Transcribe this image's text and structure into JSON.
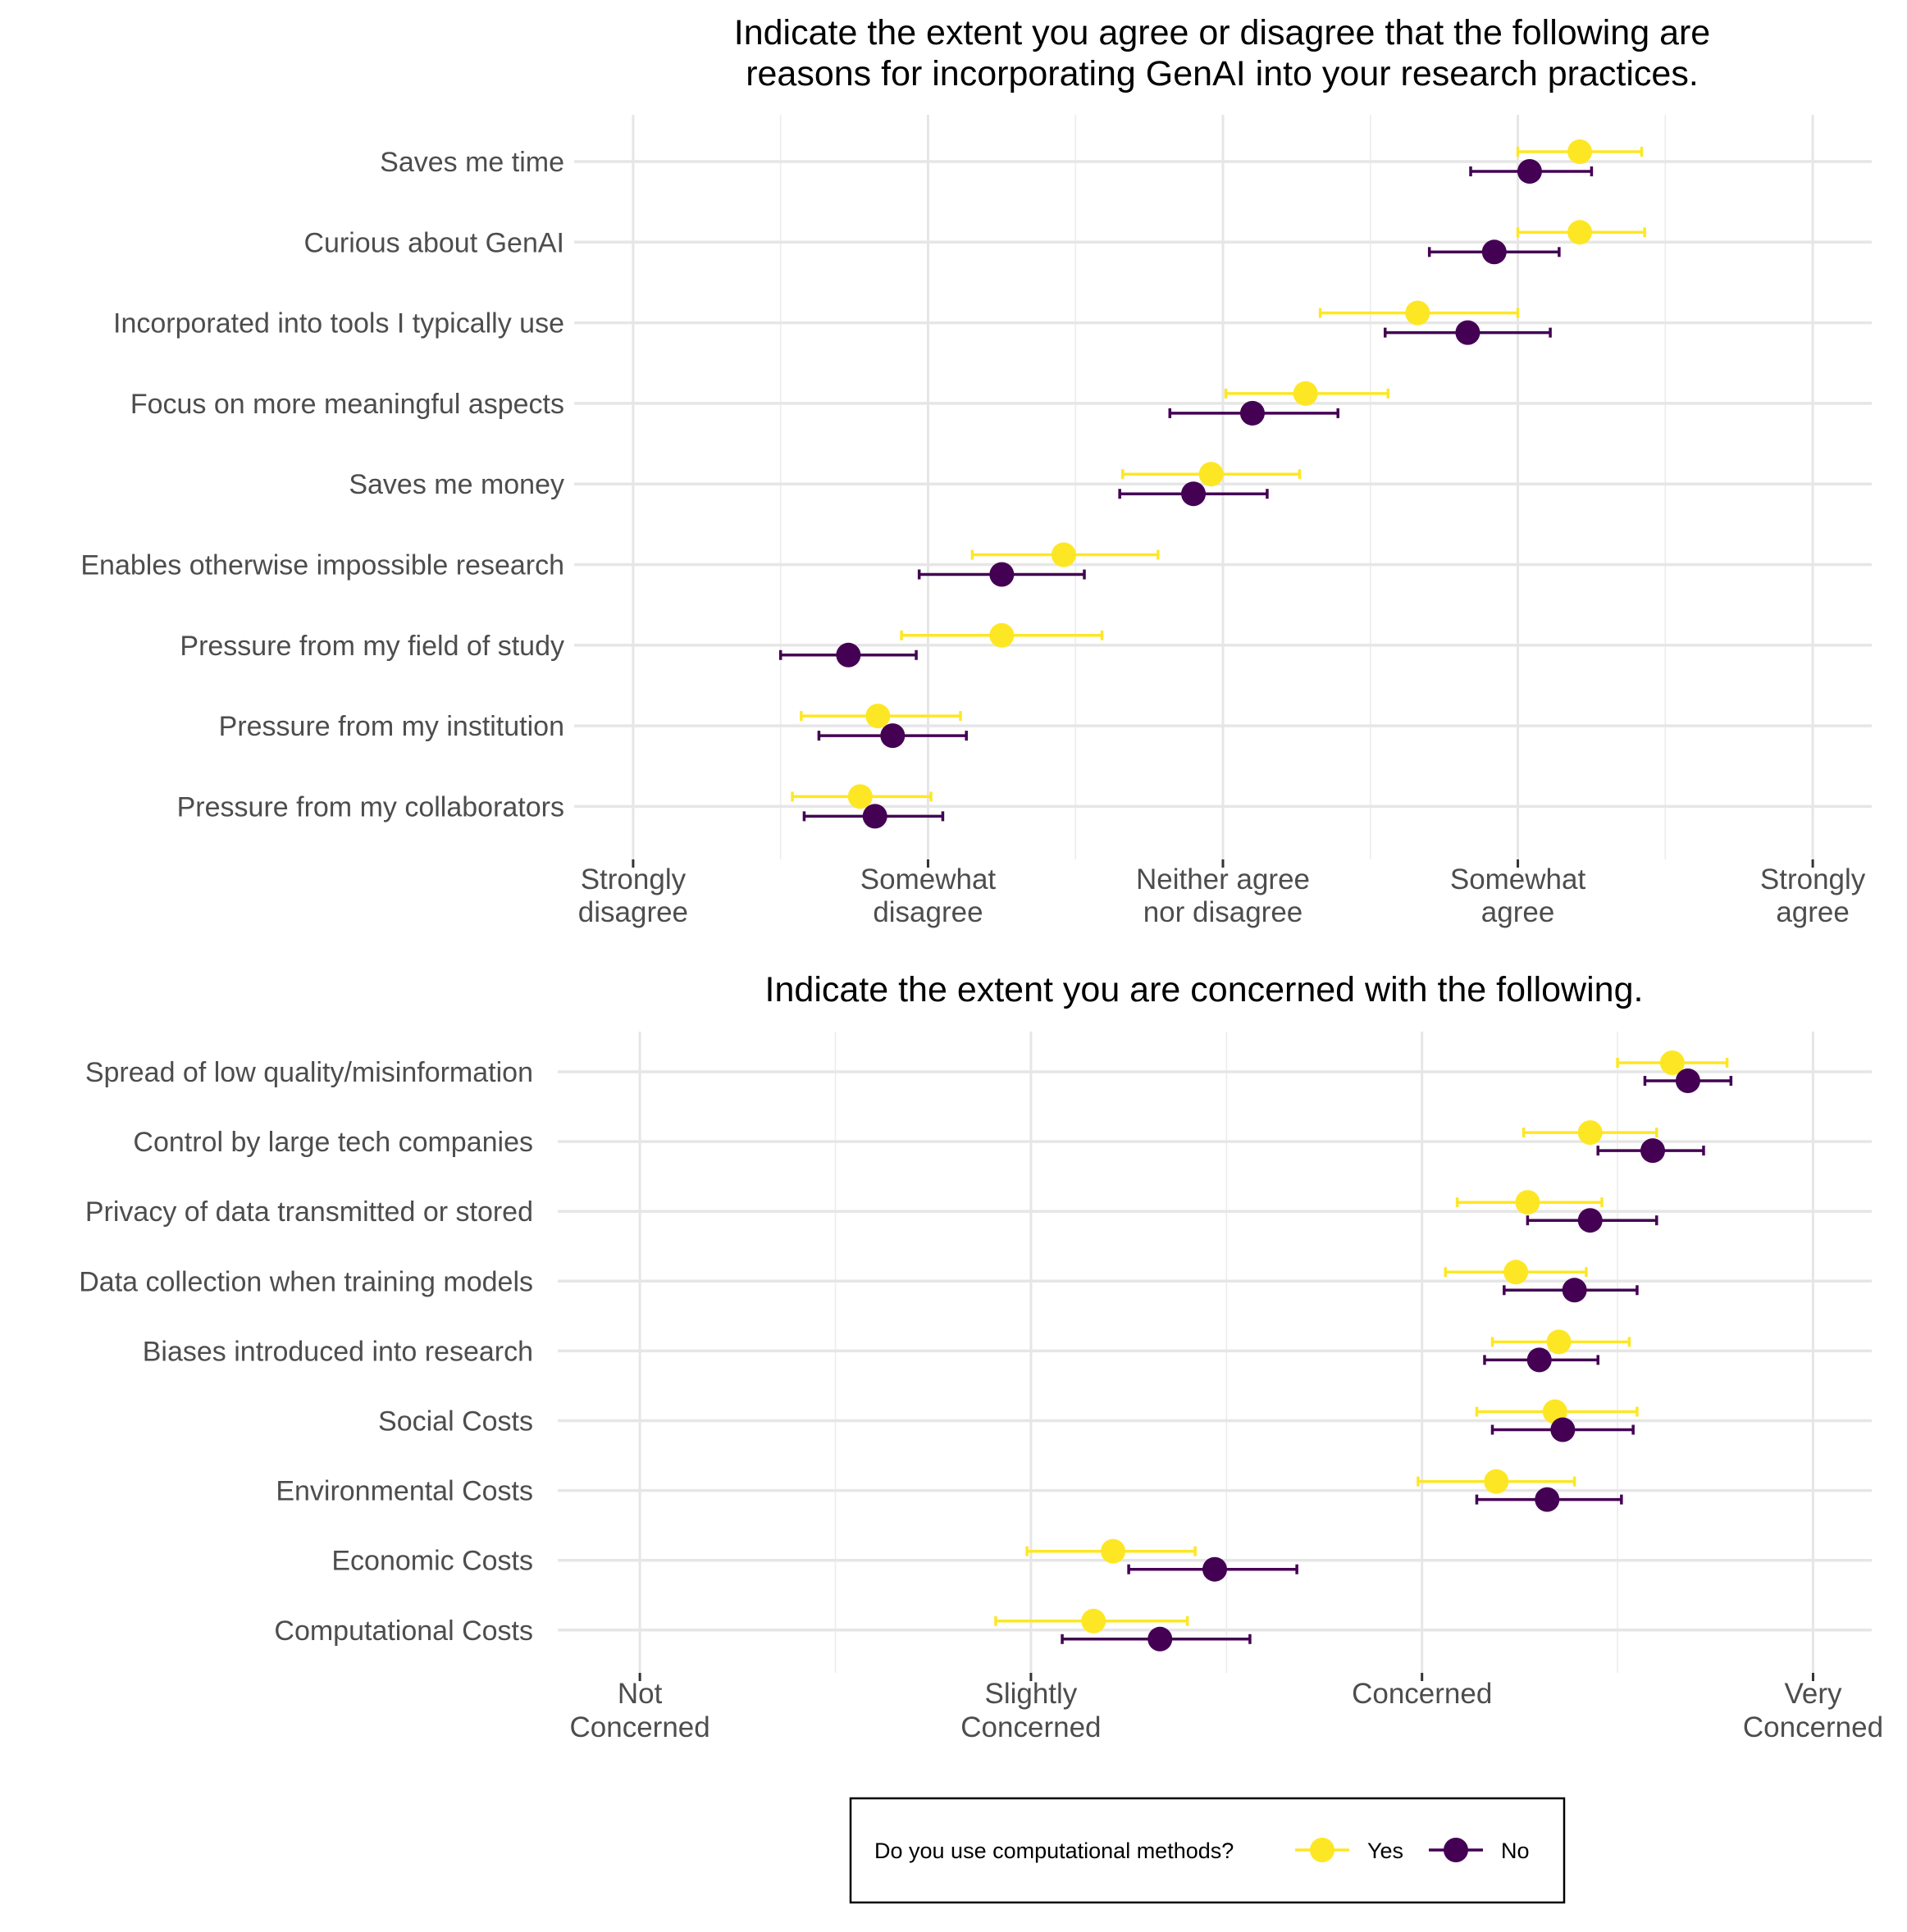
{
  "chart_data": [
    {
      "type": "dot-errorbar",
      "title": [
        "Indicate the extent you agree or disagree that the following are",
        "reasons for incorporating GenAI into your research practices."
      ],
      "x_scale": {
        "min": 1,
        "max": 5
      },
      "x_ticks": [
        {
          "value": 1,
          "label": [
            "Strongly",
            "disagree"
          ]
        },
        {
          "value": 2,
          "label": [
            "Somewhat",
            "disagree"
          ]
        },
        {
          "value": 3,
          "label": [
            "Neither agree",
            "nor disagree"
          ]
        },
        {
          "value": 4,
          "label": [
            "Somewhat",
            "agree"
          ]
        },
        {
          "value": 5,
          "label": [
            "Strongly",
            "agree"
          ]
        }
      ],
      "categories": [
        "Saves me time",
        "Curious about GenAI",
        "Incorporated into tools I typically use",
        "Focus on more meaningful aspects",
        "Saves me money",
        "Enables otherwise impossible research",
        "Pressure from my field of study",
        "Pressure from my institution",
        "Pressure from my collaborators"
      ],
      "series": [
        {
          "name": "Yes",
          "color": "#fde725",
          "values": [
            4.21,
            4.21,
            3.66,
            3.28,
            2.96,
            2.46,
            2.25,
            1.83,
            1.77
          ],
          "lower": [
            4.0,
            4.0,
            3.33,
            3.01,
            2.66,
            2.15,
            1.91,
            1.57,
            1.54
          ],
          "upper": [
            4.42,
            4.43,
            4.0,
            3.56,
            3.26,
            2.78,
            2.59,
            2.11,
            2.01
          ]
        },
        {
          "name": "No",
          "color": "#440154",
          "values": [
            4.04,
            3.92,
            3.83,
            3.1,
            2.9,
            2.25,
            1.73,
            1.88,
            1.82
          ],
          "lower": [
            3.84,
            3.7,
            3.55,
            2.82,
            2.65,
            1.97,
            1.5,
            1.63,
            1.58
          ],
          "upper": [
            4.25,
            4.14,
            4.11,
            3.39,
            3.15,
            2.53,
            1.96,
            2.13,
            2.05
          ]
        }
      ]
    },
    {
      "type": "dot-errorbar",
      "title": [
        "Indicate the extent you are concerned with the following."
      ],
      "x_scale": {
        "min": 1,
        "max": 4
      },
      "x_ticks": [
        {
          "value": 1,
          "label": [
            "Not",
            "Concerned"
          ]
        },
        {
          "value": 2,
          "label": [
            "Slightly",
            "Concerned"
          ]
        },
        {
          "value": 3,
          "label": [
            "Concerned"
          ]
        },
        {
          "value": 4,
          "label": [
            "Very",
            "Concerned"
          ]
        }
      ],
      "categories": [
        "Spread of low quality/misinformation",
        "Control by large tech companies",
        "Privacy of data transmitted or stored",
        "Data collection when training models",
        "Biases introduced into research",
        "Social Costs",
        "Environmental Costs",
        "Economic Costs",
        "Computational Costs"
      ],
      "series": [
        {
          "name": "Yes",
          "color": "#fde725",
          "values": [
            3.64,
            3.43,
            3.27,
            3.24,
            3.35,
            3.34,
            3.19,
            2.21,
            2.16
          ],
          "lower": [
            3.5,
            3.26,
            3.09,
            3.06,
            3.18,
            3.14,
            2.99,
            1.99,
            1.91
          ],
          "upper": [
            3.78,
            3.6,
            3.46,
            3.42,
            3.53,
            3.55,
            3.39,
            2.42,
            2.4
          ]
        },
        {
          "name": "No",
          "color": "#440154",
          "values": [
            3.68,
            3.59,
            3.43,
            3.39,
            3.3,
            3.36,
            3.32,
            2.47,
            2.33
          ],
          "lower": [
            3.57,
            3.45,
            3.27,
            3.21,
            3.16,
            3.18,
            3.14,
            2.25,
            2.08
          ],
          "upper": [
            3.79,
            3.72,
            3.6,
            3.55,
            3.45,
            3.54,
            3.51,
            2.68,
            2.56
          ]
        }
      ]
    }
  ],
  "legend": {
    "title": "Do you use computational methods?",
    "items": [
      {
        "label": "Yes",
        "color": "#fde725"
      },
      {
        "label": "No",
        "color": "#440154"
      }
    ]
  }
}
